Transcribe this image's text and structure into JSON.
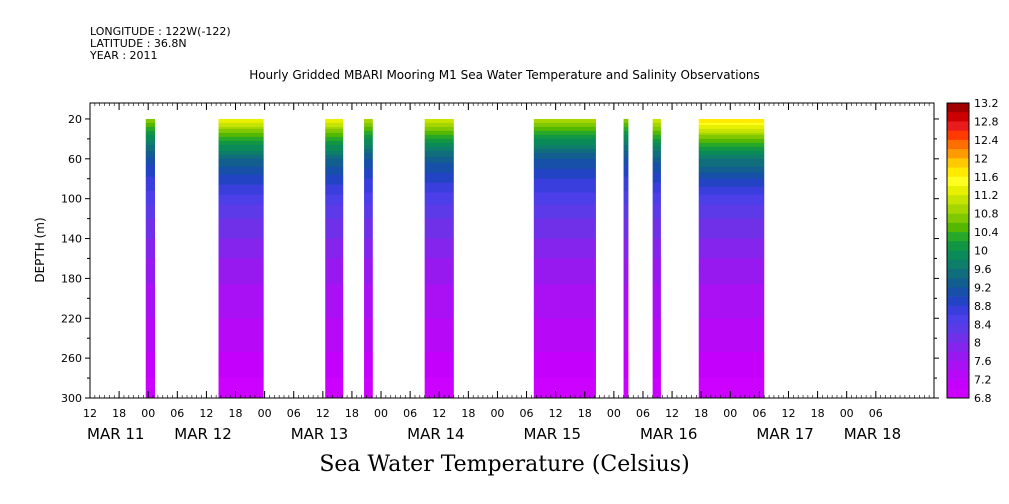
{
  "header": {
    "longitude": "LONGITUDE : 122W(-122)",
    "latitude": "LATITUDE : 36.8N",
    "year": "YEAR : 2011"
  },
  "footer": "Sea Water Temperature (Celsius)",
  "chart_data": {
    "type": "heatmap",
    "title": "Hourly Gridded MBARI Mooring M1 Sea Water Temperature and Salinity Observations",
    "xlabel": "",
    "ylabel": "DEPTH (m)",
    "ylim": [
      300,
      4
    ],
    "yticks": [
      20,
      60,
      100,
      140,
      180,
      220,
      260,
      300
    ],
    "xlim": [
      0,
      174
    ],
    "x_hour_ticks": [
      {
        "x": 0,
        "label": "12"
      },
      {
        "x": 6,
        "label": "18"
      },
      {
        "x": 12,
        "label": "00"
      },
      {
        "x": 18,
        "label": "06"
      },
      {
        "x": 24,
        "label": "12"
      },
      {
        "x": 30,
        "label": "18"
      },
      {
        "x": 36,
        "label": "00"
      },
      {
        "x": 42,
        "label": "06"
      },
      {
        "x": 48,
        "label": "12"
      },
      {
        "x": 54,
        "label": "18"
      },
      {
        "x": 60,
        "label": "00"
      },
      {
        "x": 66,
        "label": "06"
      },
      {
        "x": 72,
        "label": "12"
      },
      {
        "x": 78,
        "label": "18"
      },
      {
        "x": 84,
        "label": "00"
      },
      {
        "x": 90,
        "label": "06"
      },
      {
        "x": 96,
        "label": "12"
      },
      {
        "x": 102,
        "label": "18"
      },
      {
        "x": 108,
        "label": "00"
      },
      {
        "x": 114,
        "label": "06"
      },
      {
        "x": 120,
        "label": "12"
      },
      {
        "x": 126,
        "label": "18"
      },
      {
        "x": 132,
        "label": "00"
      },
      {
        "x": 138,
        "label": "06"
      },
      {
        "x": 144,
        "label": "12"
      },
      {
        "x": 150,
        "label": "18"
      },
      {
        "x": 156,
        "label": "00"
      },
      {
        "x": 162,
        "label": "06"
      }
    ],
    "x_date_labels": [
      {
        "x": 0,
        "label": "MAR 11"
      },
      {
        "x": 18,
        "label": "MAR 12"
      },
      {
        "x": 42,
        "label": "MAR 13"
      },
      {
        "x": 66,
        "label": "MAR 14"
      },
      {
        "x": 90,
        "label": "MAR 15"
      },
      {
        "x": 114,
        "label": "MAR 16"
      },
      {
        "x": 138,
        "label": "MAR 17"
      },
      {
        "x": 156,
        "label": "MAR 18"
      }
    ],
    "colorbar": {
      "min": 6.8,
      "max": 13.2,
      "labels": [
        "13.2",
        "12.8",
        "12.4",
        "12",
        "11.6",
        "11.2",
        "10.8",
        "10.4",
        "10",
        "9.6",
        "9.2",
        "8.8",
        "8.4",
        "8",
        "7.6",
        "7.2",
        "6.8"
      ],
      "colors": [
        "#a00000",
        "#cc0000",
        "#e81c1c",
        "#ff3a00",
        "#ff6e00",
        "#ff9a00",
        "#ffc800",
        "#ffea00",
        "#fffe20",
        "#e6f000",
        "#c6e400",
        "#a6d600",
        "#80c800",
        "#54b800",
        "#28a828",
        "#129644",
        "#0a8a58",
        "#0d7e6a",
        "#106e7c",
        "#125e8e",
        "#1650a8",
        "#2244c4",
        "#3a3edc",
        "#4c3ee8",
        "#5c3ae8",
        "#7030e8",
        "#8424ec",
        "#9818f0",
        "#aa10f4",
        "#b808f8",
        "#c400fc",
        "#cc00ff"
      ]
    },
    "profile": {
      "depths": [
        20,
        30,
        40,
        50,
        60,
        80,
        100,
        120,
        140,
        160,
        180,
        200,
        220,
        240,
        260,
        280,
        300
      ],
      "temps": [
        11.0,
        10.5,
        10.0,
        9.6,
        9.2,
        8.8,
        8.5,
        8.2,
        8.0,
        7.8,
        7.65,
        7.5,
        7.4,
        7.3,
        7.15,
        7.0,
        6.9
      ]
    },
    "segments": [
      {
        "x0": 11.5,
        "x1": 13.4,
        "top_temp": 10.8
      },
      {
        "x0": 26.5,
        "x1": 35.8,
        "top_temp": 11.4
      },
      {
        "x0": 48.5,
        "x1": 52.2,
        "top_temp": 11.4
      },
      {
        "x0": 56.5,
        "x1": 58.3,
        "top_temp": 11.0
      },
      {
        "x0": 69.0,
        "x1": 75.0,
        "top_temp": 11.2
      },
      {
        "x0": 91.5,
        "x1": 104.3,
        "top_temp": 11.0
      },
      {
        "x0": 110.0,
        "x1": 111.0,
        "top_temp": 10.8
      },
      {
        "x0": 116.0,
        "x1": 117.7,
        "top_temp": 11.2
      },
      {
        "x0": 125.5,
        "x1": 139.0,
        "top_temp": 11.8
      }
    ]
  }
}
